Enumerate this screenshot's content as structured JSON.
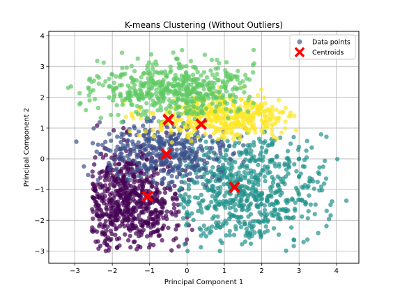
{
  "chart_data": {
    "type": "scatter",
    "title": "K-means Clustering (Without Outliers)",
    "xlabel": "Principal Component 1",
    "ylabel": "Principal Component 2",
    "xlim": [
      -3.7,
      4.6
    ],
    "ylim": [
      -3.4,
      4.15
    ],
    "xticks": [
      -3,
      -2,
      -1,
      0,
      1,
      2,
      3,
      4
    ],
    "yticks": [
      -3,
      -2,
      -1,
      0,
      1,
      2,
      3,
      4
    ],
    "xtick_labels": [
      "−3",
      "−2",
      "−1",
      "0",
      "1",
      "2",
      "3",
      "4"
    ],
    "ytick_labels": [
      "−3",
      "−2",
      "−1",
      "0",
      "1",
      "2",
      "3",
      "4"
    ],
    "grid": true,
    "legend_position": "top-right",
    "legend": [
      {
        "label": "Data points",
        "marker": "circle",
        "color": "#5b6f9e"
      },
      {
        "label": "Centroids",
        "marker": "x",
        "color": "#ff0000"
      }
    ],
    "point_alpha": 0.7,
    "clusters": [
      {
        "color": "#440154",
        "center": [
          -1.6,
          -1.3
        ],
        "spread": [
          0.75,
          0.85
        ],
        "xrange": [
          -2.55,
          0.15
        ],
        "yrange": [
          -3.0,
          1.1
        ],
        "count": 650
      },
      {
        "color": "#21918c",
        "center": [
          1.55,
          -1.0
        ],
        "spread": [
          1.1,
          0.95
        ],
        "xrange": [
          -0.2,
          4.3
        ],
        "yrange": [
          -3.0,
          0.9
        ],
        "count": 650
      },
      {
        "color": "#3b528b",
        "center": [
          -0.6,
          0.2
        ],
        "spread": [
          0.9,
          0.55
        ],
        "xrange": [
          -3.0,
          1.6
        ],
        "yrange": [
          -0.9,
          1.5
        ],
        "count": 380
      },
      {
        "color": "#fde725",
        "center": [
          1.0,
          1.35
        ],
        "spread": [
          1.0,
          0.35
        ],
        "xrange": [
          -1.8,
          3.0
        ],
        "yrange": [
          0.5,
          2.4
        ],
        "count": 420
      },
      {
        "color": "#5ec962",
        "center": [
          -0.3,
          2.3
        ],
        "spread": [
          1.1,
          0.45
        ],
        "xrange": [
          -3.2,
          1.8
        ],
        "yrange": [
          1.1,
          3.6
        ],
        "count": 520
      }
    ],
    "centroids": [
      {
        "x": -0.5,
        "y": 1.28
      },
      {
        "x": 0.38,
        "y": 1.13
      },
      {
        "x": -0.55,
        "y": 0.15
      },
      {
        "x": -1.05,
        "y": -1.22
      },
      {
        "x": 1.27,
        "y": -0.92
      }
    ]
  }
}
